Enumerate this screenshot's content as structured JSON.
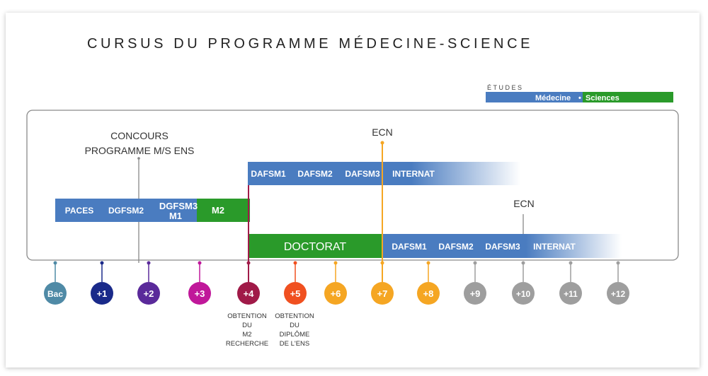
{
  "title": "CURSUS DU PROGRAMME MÉDECINE-SCIENCE",
  "legend": {
    "heading": "ÉTUDES",
    "medicine_label": "Médecine",
    "separator": "•",
    "science_label": "Sciences",
    "medicine_color": "#4a7cc0",
    "science_color": "#2a9a2a"
  },
  "annotations": {
    "concours_line1": "CONCOURS",
    "concours_line2": "PROGRAMME M/S ENS",
    "ecn_top": "ECN",
    "ecn_bottom": "ECN"
  },
  "tracks": {
    "first_cycle": [
      "PACES",
      "DGFSM2"
    ],
    "dgfsm3_line1": "DGFSM3",
    "dgfsm3_line2": "M1",
    "m2": "M2",
    "upper_path": [
      "DAFSM1",
      "DAFSM2",
      "DAFSM3",
      "INTERNAT"
    ],
    "doctorat": "DOCTORAT",
    "lower_path": [
      "DAFSM1",
      "DAFSM2",
      "DAFSM3",
      "INTERNAT"
    ]
  },
  "years": [
    {
      "label": "Bac",
      "color": "#4f8aa6"
    },
    {
      "label": "+1",
      "color": "#1a2a8a"
    },
    {
      "label": "+2",
      "color": "#5a2a9a"
    },
    {
      "label": "+3",
      "color": "#c0189a"
    },
    {
      "label": "+4",
      "color": "#a01a48"
    },
    {
      "label": "+5",
      "color": "#f05020"
    },
    {
      "label": "+6",
      "color": "#f5a623"
    },
    {
      "label": "+7",
      "color": "#f5a623"
    },
    {
      "label": "+8",
      "color": "#f5a623"
    },
    {
      "label": "+9",
      "color": "#9e9e9e"
    },
    {
      "label": "+10",
      "color": "#9e9e9e"
    },
    {
      "label": "+11",
      "color": "#9e9e9e"
    },
    {
      "label": "+12",
      "color": "#9e9e9e"
    }
  ],
  "notes": {
    "m2": [
      "OBTENTION",
      "DU",
      "M2",
      "RECHERCHE"
    ],
    "ens": [
      "OBTENTION",
      "DU",
      "DIPLÔME",
      "DE L'ENS"
    ]
  }
}
